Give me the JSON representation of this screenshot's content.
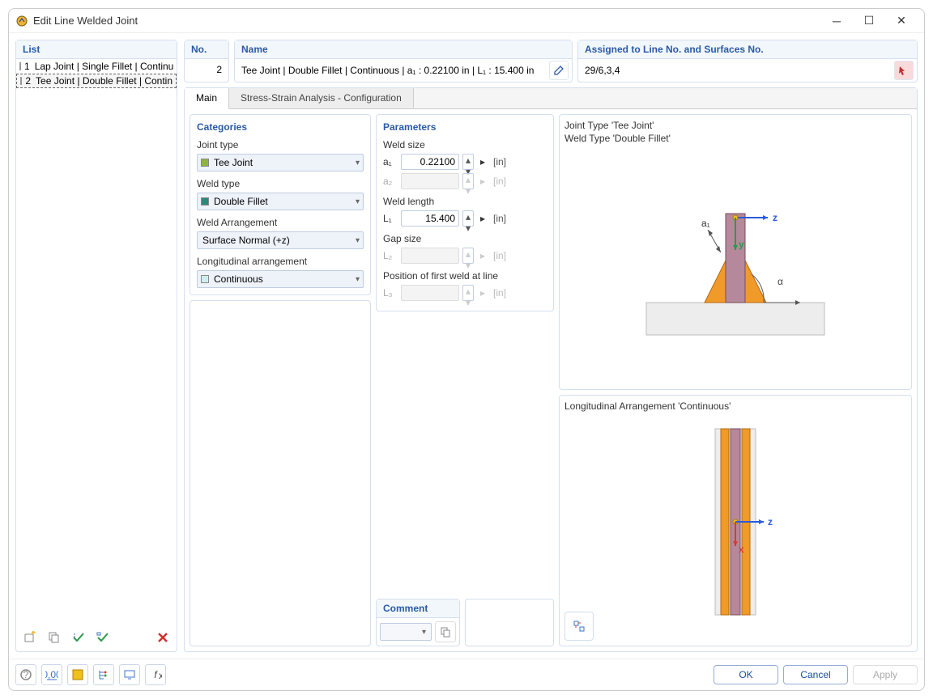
{
  "window": {
    "title": "Edit Line Welded Joint"
  },
  "sections": {
    "list": "List",
    "no": "No.",
    "name": "Name",
    "assigned": "Assigned to Line No. and Surfaces No.",
    "categories": "Categories",
    "parameters": "Parameters",
    "comment": "Comment"
  },
  "list_items": [
    {
      "num": "1",
      "label": "Lap Joint | Single Fillet | Continu",
      "swatch": "#bfe7e7",
      "selected": false
    },
    {
      "num": "2",
      "label": "Tee Joint | Double Fillet | Contin",
      "swatch": "#9a9a32",
      "selected": true
    }
  ],
  "no_value": "2",
  "name_value": "Tee Joint | Double Fillet | Continuous | a₁ : 0.22100 in | L₁ : 15.400 in",
  "assigned_value": "29/6,3,4",
  "tabs": {
    "main": "Main",
    "stress": "Stress-Strain Analysis - Configuration",
    "active": "main"
  },
  "categories": {
    "joint_type_label": "Joint type",
    "joint_type_value": "Tee Joint",
    "joint_type_swatch": "#8fb53c",
    "weld_type_label": "Weld type",
    "weld_type_value": "Double Fillet",
    "weld_type_swatch": "#2a8a7a",
    "weld_arr_label": "Weld Arrangement",
    "weld_arr_value": "Surface Normal (+z)",
    "long_arr_label": "Longitudinal arrangement",
    "long_arr_value": "Continuous",
    "long_arr_swatch": "#cdeeee"
  },
  "parameters": {
    "weld_size_label": "Weld size",
    "a1_label": "a₁",
    "a1_value": "0.22100",
    "a2_label": "a₂",
    "weld_length_label": "Weld length",
    "L1_label": "L₁",
    "L1_value": "15.400",
    "gap_size_label": "Gap size",
    "L2_label": "L₂",
    "pos_first_label": "Position of first weld at line",
    "L3_label": "L₃",
    "unit": "[in]"
  },
  "preview1": {
    "line1": "Joint Type 'Tee Joint'",
    "line2": "Weld Type 'Double Fillet'",
    "colors": {
      "plate_fill": "#b5899b",
      "plate_stroke": "#7a4a5a",
      "fillet": "#f09a2a",
      "base_fill": "#ededed",
      "base_stroke": "#bdbdbd",
      "arrow_z": "#2a5ae0",
      "arrow_y": "#2a9a4a",
      "alpha": "#444"
    },
    "labels": {
      "a1": "a₁",
      "z": "z",
      "y": "y",
      "alpha": "α"
    }
  },
  "preview2": {
    "title": "Longitudinal Arrangement 'Continuous'",
    "colors": {
      "plate_fill": "#b5899b",
      "fillet": "#f09a2a",
      "arrow_z": "#2a5ae0",
      "arrow_x": "#d04030"
    },
    "labels": {
      "z": "z",
      "x": "x"
    }
  },
  "buttons": {
    "ok": "OK",
    "cancel": "Cancel",
    "apply": "Apply"
  },
  "toolbar_colors": {
    "new": "#f0c040",
    "copy": "#888",
    "check1": "#2a9a4a",
    "check2": "#2a9a4a",
    "delete": "#d03030",
    "help": "#888",
    "units": "#3a75d0",
    "color": "#f0c020",
    "tree": "#3a75d0",
    "monitor": "#3a75d0",
    "func": "#444"
  }
}
